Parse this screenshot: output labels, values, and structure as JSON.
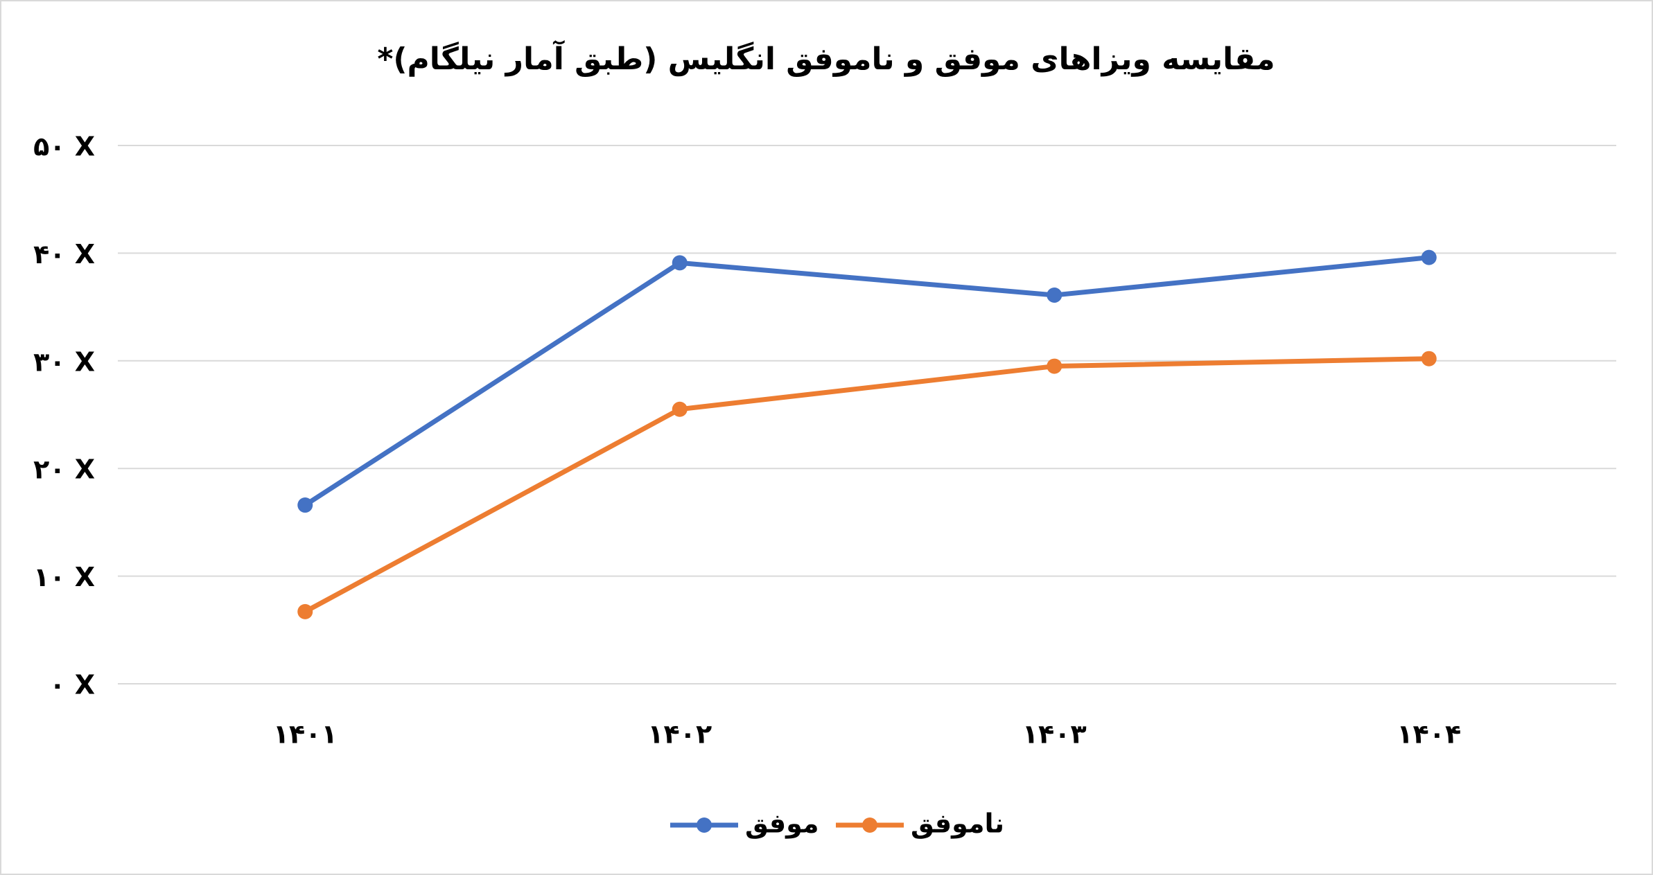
{
  "chart_data": {
    "type": "line",
    "title": "مقایسه ویزاهای موفق و ناموفق انگلیس (طبق آمار نیلگام)*",
    "categories": [
      "۱۴۰۱",
      "۱۴۰۲",
      "۱۴۰۳",
      "۱۴۰۴"
    ],
    "series": [
      {
        "name": "موفق",
        "color": "#4472c4",
        "values": [
          16.6,
          39.1,
          36.1,
          39.6
        ]
      },
      {
        "name": "ناموفق",
        "color": "#ed7d31",
        "values": [
          6.7,
          25.5,
          29.5,
          30.2
        ]
      }
    ],
    "ylim": [
      0,
      50
    ],
    "yticks": [
      {
        "value": 0,
        "label": "۰ X"
      },
      {
        "value": 10,
        "label": "۱۰ X"
      },
      {
        "value": 20,
        "label": "۲۰ X"
      },
      {
        "value": 30,
        "label": "۳۰ X"
      },
      {
        "value": 40,
        "label": "۴۰ X"
      },
      {
        "value": 50,
        "label": "۵۰ X"
      }
    ],
    "grid": true,
    "legend": "bottom"
  }
}
